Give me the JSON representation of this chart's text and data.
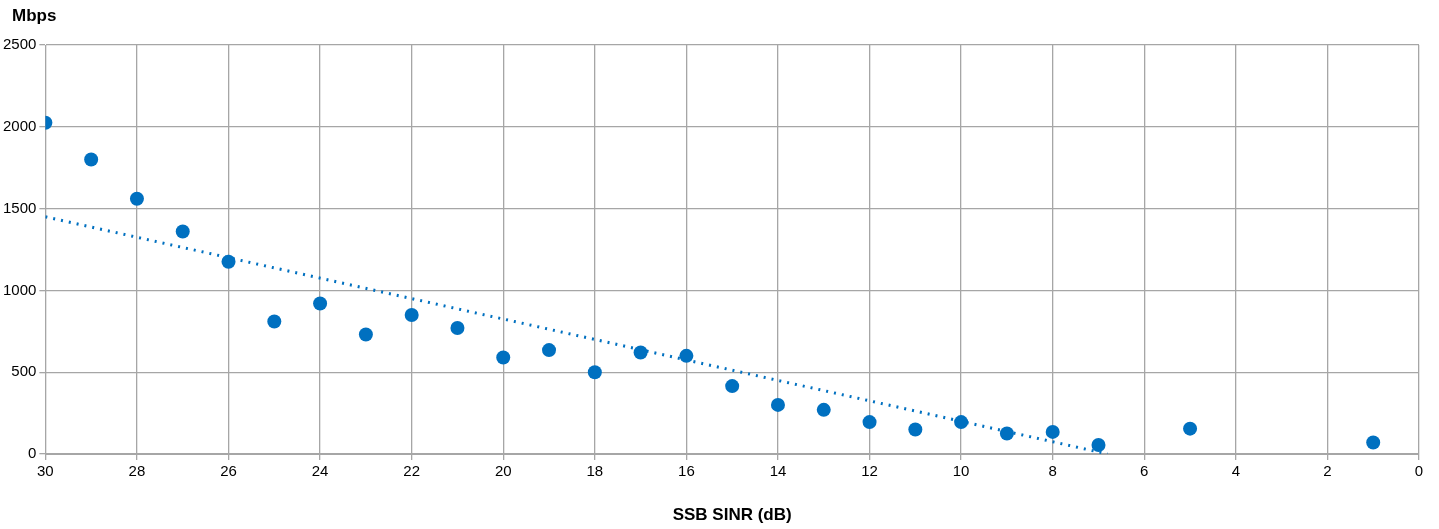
{
  "chart_data": {
    "type": "scatter",
    "xlabel": "SSB SINR (dB)",
    "ylabel": "Mbps",
    "x": [
      30,
      29,
      28,
      27,
      26,
      25,
      24,
      23,
      22,
      21,
      20,
      19,
      18,
      17,
      16,
      15,
      14,
      13,
      12,
      11,
      10,
      9,
      8,
      7,
      5,
      1
    ],
    "series": [
      {
        "color": "#0070c0",
        "values": [
          2025,
          1800,
          1560,
          1360,
          1175,
          810,
          920,
          730,
          850,
          770,
          590,
          635,
          500,
          620,
          600,
          415,
          300,
          270,
          195,
          150,
          195,
          125,
          135,
          55,
          155,
          70
        ]
      },
      {
        "type": "line",
        "color": "#0070c0",
        "line_style": "dotted",
        "marker": "none",
        "x": [
          30,
          6.8
        ],
        "values": [
          1450,
          0
        ]
      }
    ],
    "marker": "circle",
    "xlim": [
      30,
      0
    ],
    "xticks": [
      30,
      28,
      26,
      24,
      22,
      20,
      18,
      16,
      14,
      12,
      10,
      8,
      6,
      4,
      2,
      0
    ],
    "ylim": [
      0,
      2500
    ],
    "yticks": [
      0,
      500,
      1000,
      1500,
      2000,
      2500
    ],
    "grid": true,
    "legend": false
  }
}
